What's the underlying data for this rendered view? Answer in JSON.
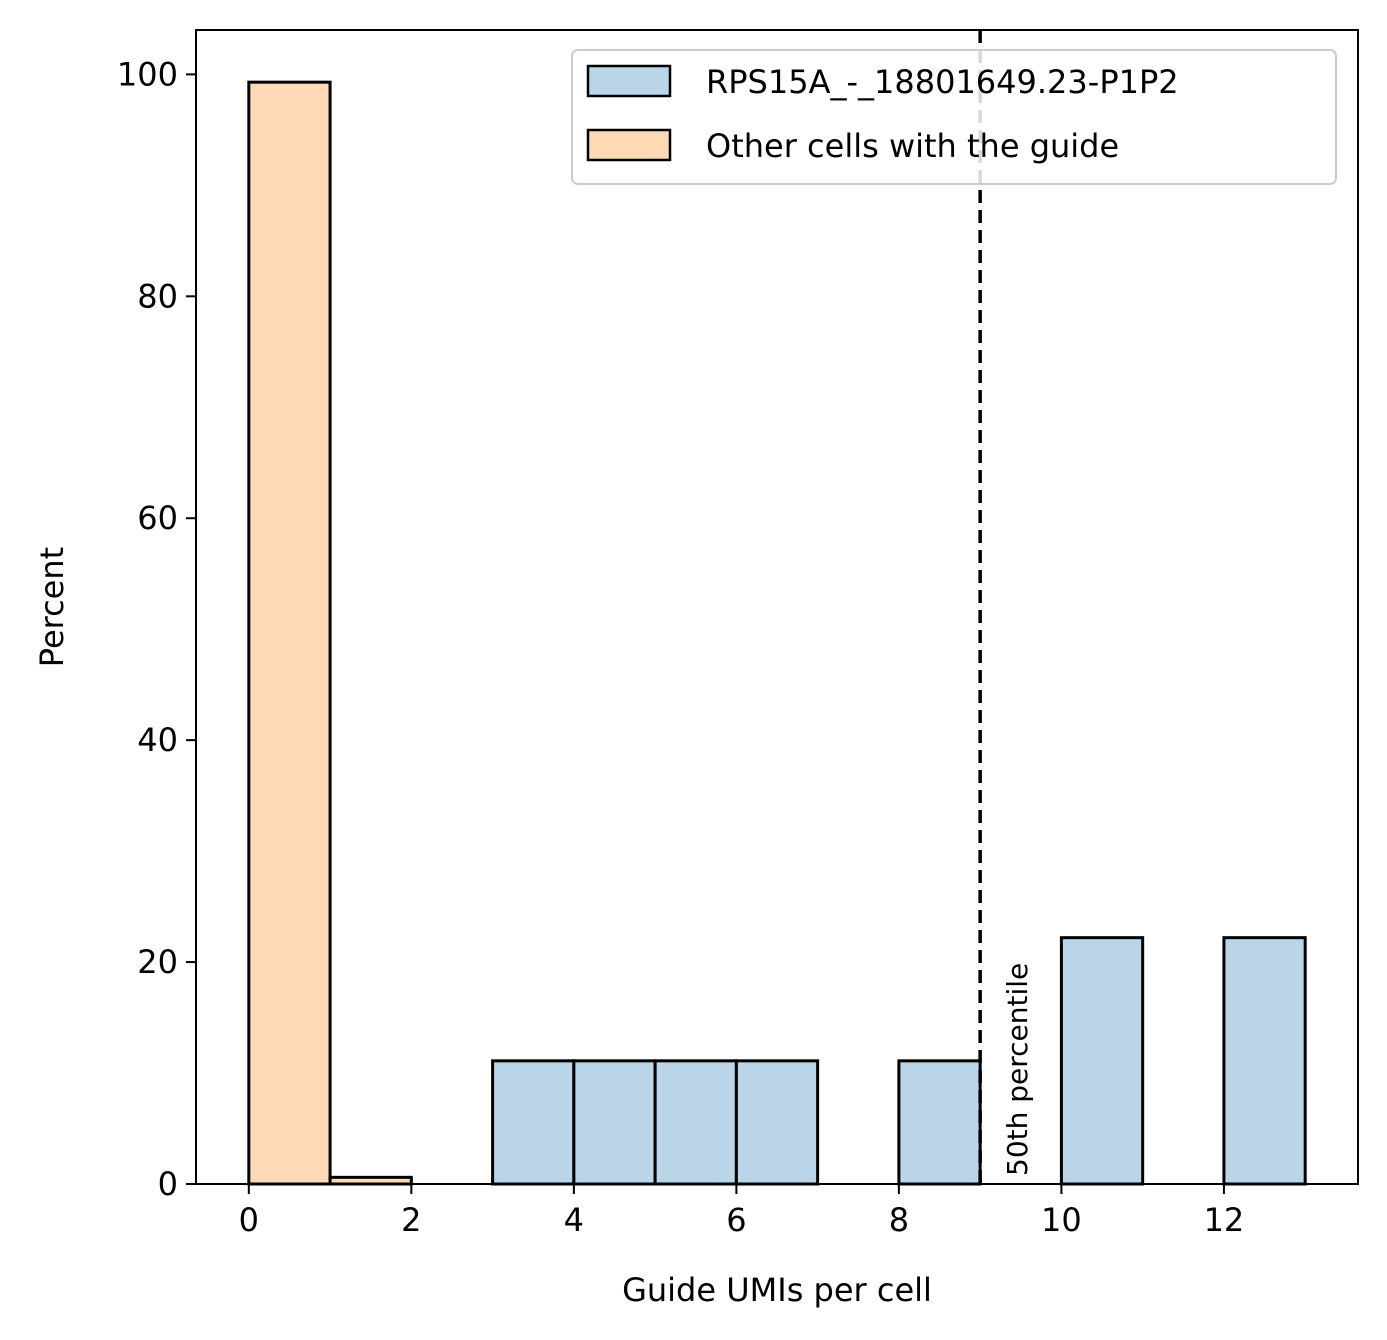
{
  "chart_data": {
    "type": "bar",
    "title": "",
    "xlabel": "Guide UMIs per cell",
    "ylabel": "Percent",
    "xlim": [
      -0.65,
      13.65
    ],
    "ylim": [
      0,
      104
    ],
    "xticks": [
      0,
      2,
      4,
      6,
      8,
      10,
      12
    ],
    "yticks": [
      0,
      20,
      40,
      60,
      80,
      100
    ],
    "grid": false,
    "legend_position": "top-right",
    "series": [
      {
        "name": "RPS15A_-_18801649.23-P1P2",
        "color": "#bad4e8",
        "bins": [
          {
            "x0": 3,
            "x1": 4,
            "value": 11.1
          },
          {
            "x0": 4,
            "x1": 5,
            "value": 11.1
          },
          {
            "x0": 5,
            "x1": 6,
            "value": 11.1
          },
          {
            "x0": 6,
            "x1": 7,
            "value": 11.1
          },
          {
            "x0": 7,
            "x1": 8,
            "value": 0
          },
          {
            "x0": 8,
            "x1": 9,
            "value": 11.1
          },
          {
            "x0": 9,
            "x1": 10,
            "value": 0
          },
          {
            "x0": 10,
            "x1": 11,
            "value": 22.2
          },
          {
            "x0": 11,
            "x1": 12,
            "value": 0
          },
          {
            "x0": 12,
            "x1": 13,
            "value": 22.2
          }
        ]
      },
      {
        "name": "Other cells with the guide",
        "color": "#fed9b6",
        "bins": [
          {
            "x0": 0,
            "x1": 1,
            "value": 99.3
          },
          {
            "x0": 1,
            "x1": 2,
            "value": 0.6
          }
        ]
      }
    ],
    "annotations": [
      {
        "type": "vline",
        "x": 9,
        "style": "dashed",
        "label": "50th percentile"
      }
    ]
  }
}
